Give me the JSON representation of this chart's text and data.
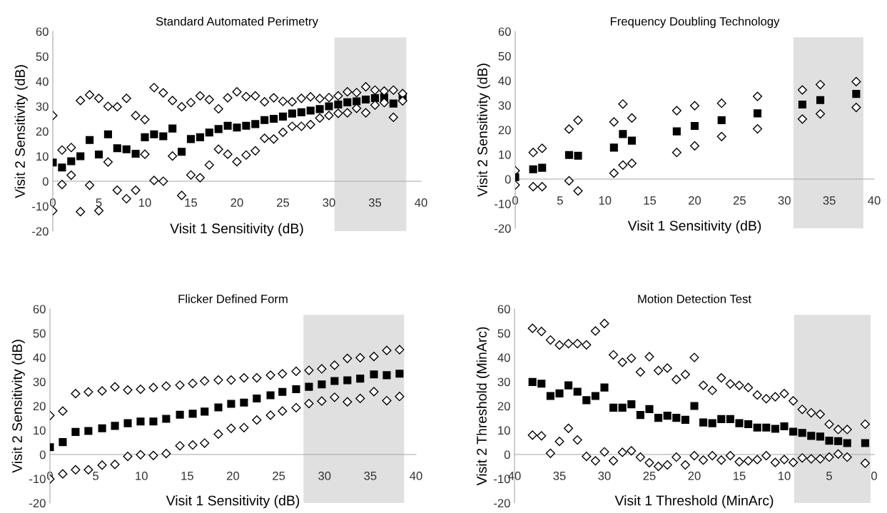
{
  "chart_data": [
    {
      "type": "scatter",
      "title": "Standard Automated Perimetry",
      "xlabel": "Visit 1 Sensitivity (dB)",
      "ylabel": "Visit 2 Sensitivity (dB)",
      "xlim": [
        0,
        40
      ],
      "ylim": [
        -20,
        60
      ],
      "xticks": [
        0,
        5,
        10,
        15,
        20,
        25,
        30,
        35,
        40
      ],
      "yticks": [
        -20,
        -10,
        0,
        10,
        20,
        30,
        40,
        50,
        60
      ],
      "bands": [
        {
          "axis": "x",
          "from": 30.6,
          "to": 38.4,
          "color": "#e0e0e0"
        }
      ],
      "series": [
        {
          "color": "#000000",
          "marker": "square",
          "x": [
            0,
            1,
            2,
            3,
            4,
            5,
            6,
            7,
            8,
            9,
            10,
            11,
            12,
            13,
            14,
            15,
            16,
            17,
            18,
            19,
            20,
            21,
            22,
            23,
            24,
            25,
            26,
            27,
            28,
            29,
            30,
            31,
            32,
            33,
            34,
            35,
            36,
            37,
            38
          ],
          "values": [
            7.5,
            5.5,
            8,
            10,
            16.5,
            10.7,
            18.8,
            13.2,
            12.8,
            11,
            17.6,
            18.8,
            18,
            21.1,
            11.8,
            16.9,
            17.6,
            19.5,
            20.9,
            22.2,
            21.5,
            22.2,
            22.9,
            24.5,
            25,
            25.9,
            27.1,
            27.6,
            28.3,
            28.9,
            30,
            30.7,
            31.6,
            32,
            32.7,
            33.3,
            33.6,
            31.1,
            33.3
          ]
        },
        {
          "color": "#ffffff",
          "marker": "diamond",
          "x": [
            0,
            1,
            2,
            3,
            4,
            5,
            6,
            7,
            8,
            9,
            10,
            11,
            12,
            13,
            14,
            15,
            16,
            17,
            18,
            19,
            20,
            21,
            22,
            23,
            24,
            25,
            26,
            27,
            28,
            29,
            30,
            31,
            32,
            33,
            34,
            35,
            36,
            37,
            38
          ],
          "values": [
            26.3,
            12.5,
            13.5,
            32.3,
            34.6,
            33.2,
            30,
            29.8,
            33.2,
            26.3,
            24.7,
            37.5,
            35.4,
            32.3,
            29.8,
            31.5,
            34.2,
            32.7,
            29,
            33.4,
            35.8,
            33.9,
            34.2,
            31.8,
            33.4,
            32,
            31.8,
            33.2,
            33.8,
            33.1,
            33.5,
            34.2,
            35.8,
            35.5,
            37.8,
            36.5,
            36.1,
            36.5,
            35.1
          ]
        },
        {
          "color": "#ffffff",
          "marker": "diamond",
          "x": [
            0,
            1,
            2,
            3,
            4,
            5,
            6,
            7,
            8,
            9,
            10,
            11,
            12,
            13,
            14,
            15,
            16,
            17,
            18,
            19,
            20,
            21,
            22,
            23,
            24,
            25,
            26,
            27,
            28,
            29,
            30,
            31,
            32,
            33,
            34,
            35,
            36,
            37,
            38
          ],
          "values": [
            -11.8,
            -1.3,
            2.4,
            -12.2,
            -1.6,
            -11.8,
            7.7,
            -3.6,
            -7,
            -3.6,
            10.8,
            0.3,
            0,
            10.1,
            -5.7,
            2.5,
            1.4,
            6.5,
            12.8,
            10.8,
            7.8,
            10.5,
            12.2,
            17.2,
            16.9,
            19.6,
            22,
            22,
            22.7,
            25.3,
            26.3,
            27.2,
            27.4,
            29.2,
            27.4,
            30.5,
            31.5,
            25.6,
            32.2
          ]
        }
      ]
    },
    {
      "type": "scatter",
      "title": "Frequency Doubling Technology",
      "xlabel": "Visit 1 Sensitivity (dB)",
      "ylabel": "Visit 2 Sensitivity (dB)",
      "xlim": [
        0,
        40
      ],
      "ylim": [
        -20,
        60
      ],
      "xticks": [
        0,
        5,
        10,
        15,
        20,
        25,
        30,
        35,
        40
      ],
      "yticks": [
        -20,
        -10,
        0,
        10,
        20,
        30,
        40,
        50,
        60
      ],
      "bands": [
        {
          "axis": "x",
          "from": 31.0,
          "to": 38.8,
          "color": "#e0e0e0"
        }
      ],
      "series": [
        {
          "color": "#ffffff",
          "marker": "diamond",
          "x": [
            0,
            2,
            3,
            6,
            7,
            11,
            12,
            13,
            18,
            20,
            23,
            27,
            32,
            34,
            38
          ],
          "values": [
            3.4,
            10.8,
            12.5,
            20.3,
            23.9,
            23.2,
            30.5,
            24.8,
            27.8,
            29.8,
            30.8,
            33.6,
            36.2,
            38.4,
            39.6
          ]
        },
        {
          "color": "#ffffff",
          "marker": "diamond",
          "x": [
            0,
            2,
            3,
            6,
            7,
            11,
            12,
            13,
            18,
            20,
            23,
            27,
            32,
            34,
            38
          ],
          "values": [
            -2.4,
            -3.1,
            -3.1,
            -0.7,
            -4.8,
            2.4,
            5.7,
            6.4,
            10.8,
            13.5,
            17.3,
            20.4,
            24.4,
            26.5,
            29.1
          ]
        },
        {
          "color": "#000000",
          "marker": "square",
          "x": [
            0,
            2,
            3,
            6,
            7,
            11,
            12,
            13,
            18,
            20,
            23,
            27,
            32,
            34,
            38
          ],
          "values": [
            0.8,
            4,
            4.6,
            9.8,
            9.5,
            12.8,
            18.3,
            15.6,
            19.4,
            21.6,
            23.9,
            26.7,
            30.3,
            32.1,
            34.6
          ]
        }
      ]
    },
    {
      "type": "scatter",
      "title": "Flicker Defined Form",
      "xlabel": "Visit 1 Sensitivity (dB)",
      "ylabel": "Visit 2 Sensitivity (dB)",
      "xlim": [
        0,
        40
      ],
      "ylim": [
        -20,
        60
      ],
      "xticks": [
        0,
        5,
        10,
        15,
        20,
        25,
        30,
        35,
        40
      ],
      "yticks": [
        -20,
        -10,
        0,
        10,
        20,
        30,
        40,
        50,
        60
      ],
      "bands": [
        {
          "axis": "x",
          "from": 27.7,
          "to": 38.7,
          "color": "#e0e0e0"
        }
      ],
      "series": [
        {
          "color": "#ffffff",
          "marker": "diamond",
          "x": [
            0,
            1.4,
            2.8,
            4.2,
            5.7,
            7.1,
            8.5,
            9.9,
            11.3,
            12.7,
            14.2,
            15.6,
            16.9,
            18.4,
            19.8,
            21.2,
            22.6,
            24.1,
            25.4,
            26.9,
            28.3,
            29.7,
            31.1,
            32.5,
            33.9,
            35.4,
            36.8,
            38.2
          ],
          "values": [
            16.1,
            17.9,
            25.1,
            25.8,
            26.2,
            27.9,
            26.6,
            26.9,
            27.6,
            28.2,
            28.6,
            29.3,
            30.3,
            30.7,
            30.7,
            31.6,
            31.6,
            32.7,
            33.3,
            34.3,
            34.7,
            35.3,
            36.8,
            39.6,
            39.9,
            40.4,
            42.9,
            43.2
          ]
        },
        {
          "color": "#ffffff",
          "marker": "diamond",
          "x": [
            0,
            1.4,
            2.8,
            4.2,
            5.7,
            7.1,
            8.5,
            9.9,
            11.3,
            12.7,
            14.2,
            15.6,
            16.9,
            18.4,
            19.8,
            21.2,
            22.6,
            24.1,
            25.4,
            26.9,
            28.3,
            29.7,
            31.1,
            32.5,
            33.9,
            35.4,
            36.8,
            38.2
          ],
          "values": [
            -10.1,
            -8.0,
            -6.3,
            -6.3,
            -4.4,
            -4.1,
            -0.8,
            -0.1,
            -0.4,
            0.4,
            3.6,
            3.9,
            4.7,
            8.4,
            10.8,
            11.1,
            14.2,
            16.2,
            17.9,
            19.3,
            21.0,
            22.0,
            23.6,
            21.7,
            23.1,
            25.9,
            22.2,
            23.9
          ]
        },
        {
          "color": "#000000",
          "marker": "square",
          "x": [
            0,
            1.4,
            2.8,
            4.2,
            5.7,
            7.1,
            8.5,
            9.9,
            11.3,
            12.7,
            14.2,
            15.6,
            16.9,
            18.4,
            19.8,
            21.2,
            22.6,
            24.1,
            25.4,
            26.9,
            28.3,
            29.7,
            31.1,
            32.5,
            33.9,
            35.4,
            36.8,
            38.2
          ],
          "values": [
            3.0,
            5.1,
            9.3,
            9.7,
            10.8,
            11.8,
            12.9,
            13.6,
            13.6,
            14.7,
            16.4,
            16.8,
            17.7,
            19.4,
            20.9,
            21.4,
            23.1,
            24.4,
            25.8,
            26.9,
            27.9,
            28.9,
            30.3,
            30.6,
            31.3,
            33.0,
            32.7,
            33.3
          ]
        }
      ]
    },
    {
      "type": "scatter",
      "title": "Motion Detection Test",
      "xlabel": "Visit 1 Threshold (MinArc)",
      "ylabel": "Visit 2 Threshold (MinArc)",
      "xlim": [
        40,
        0
      ],
      "ylim": [
        -20,
        60
      ],
      "xticks": [
        40,
        35,
        30,
        25,
        20,
        15,
        10,
        5,
        0
      ],
      "yticks": [
        -20,
        -10,
        0,
        10,
        20,
        30,
        40,
        50,
        60
      ],
      "bands": [
        {
          "axis": "x",
          "from": 8.9,
          "to": 0.4,
          "color": "#e0e0e0"
        }
      ],
      "series": [
        {
          "color": "#ffffff",
          "marker": "diamond",
          "x": [
            38,
            37,
            36,
            35,
            34,
            33,
            32,
            31,
            30,
            29,
            28,
            27,
            26,
            25,
            24,
            23,
            22,
            21,
            20,
            19,
            18,
            17,
            16,
            15,
            14,
            13,
            12,
            11,
            10,
            9,
            8,
            7,
            6,
            5,
            4,
            3,
            1
          ],
          "values": [
            52.0,
            50.7,
            47.2,
            45.1,
            45.7,
            45.7,
            45.2,
            50.9,
            54.0,
            41.1,
            38.0,
            39.7,
            34.0,
            40.3,
            34.6,
            35.6,
            30.9,
            33.0,
            40.0,
            28.5,
            26.4,
            31.6,
            29.1,
            28.5,
            27.6,
            24.5,
            23.0,
            23.8,
            25.1,
            22.1,
            18.6,
            17.2,
            16.6,
            12.5,
            10.3,
            10.3,
            12.5
          ]
        },
        {
          "color": "#ffffff",
          "marker": "diamond",
          "x": [
            38,
            37,
            36,
            35,
            34,
            33,
            32,
            31,
            30,
            29,
            28,
            27,
            26,
            25,
            24,
            23,
            22,
            21,
            20,
            19,
            18,
            17,
            16,
            15,
            14,
            13,
            12,
            11,
            10,
            9,
            8,
            7,
            6,
            5,
            4,
            3,
            1
          ],
          "values": [
            8.0,
            7.7,
            0.5,
            5.4,
            10.8,
            6.0,
            -0.8,
            -2.6,
            1.1,
            -2.6,
            0.9,
            1.5,
            -1.1,
            -3.4,
            -4.9,
            -4.3,
            -1.1,
            -4.3,
            -0.5,
            -2.3,
            -0.5,
            -2.3,
            -0.5,
            -3.0,
            -2.6,
            -2.1,
            -0.5,
            -3.3,
            -2.1,
            -3.3,
            -1.4,
            -1.8,
            -1.8,
            -1.1,
            0.2,
            -1.1,
            -3.6
          ]
        },
        {
          "color": "#000000",
          "marker": "square",
          "x": [
            38,
            37,
            36,
            35,
            34,
            33,
            32,
            31,
            30,
            29,
            28,
            27,
            26,
            25,
            24,
            23,
            22,
            21,
            20,
            19,
            18,
            17,
            16,
            15,
            14,
            13,
            12,
            11,
            10,
            9,
            8,
            7,
            6,
            5,
            4,
            3,
            1
          ],
          "values": [
            29.9,
            29.2,
            24.1,
            25.2,
            28.5,
            25.9,
            22.4,
            24.1,
            27.6,
            19.3,
            19.3,
            20.7,
            16.3,
            18.7,
            15.1,
            16.0,
            15.1,
            14.3,
            20.0,
            13.2,
            12.9,
            14.6,
            14.6,
            12.9,
            12.5,
            11.1,
            11.1,
            10.6,
            11.6,
            9.4,
            8.9,
            7.7,
            7.4,
            5.7,
            5.5,
            4.7,
            4.7
          ]
        }
      ]
    }
  ]
}
